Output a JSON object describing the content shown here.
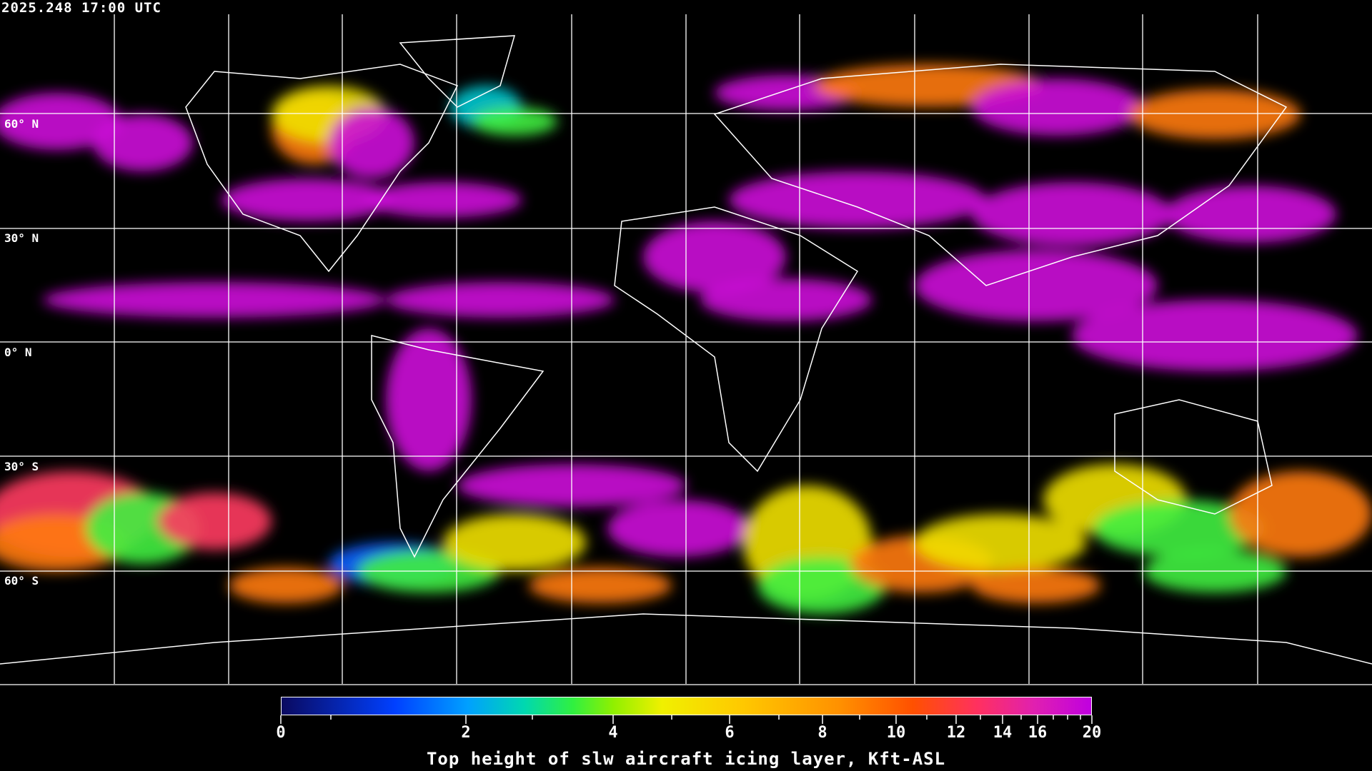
{
  "header": {
    "timestamp": "2025.248 17:00 UTC"
  },
  "map": {
    "projection": "equirectangular",
    "grid": true,
    "lat_labels": [
      "60° N",
      "30° N",
      "0° N",
      "30° S",
      "60° S"
    ],
    "coastline_color": "#ffffff",
    "background_color": "#000000"
  },
  "colorbar": {
    "title": "Top height of slw aircraft icing layer, Kft-ASL",
    "tick_labels": [
      "0",
      "2",
      "4",
      "6",
      "8",
      "10",
      "12",
      "14",
      "16",
      "20"
    ],
    "range": [
      0,
      20
    ],
    "colors": [
      "#0a0a60",
      "#0040ff",
      "#00a0ff",
      "#00d8b0",
      "#30f040",
      "#90f000",
      "#f0f000",
      "#ffc800",
      "#ff9000",
      "#ff5000",
      "#ff3060",
      "#e020b0",
      "#c000e0"
    ]
  }
}
